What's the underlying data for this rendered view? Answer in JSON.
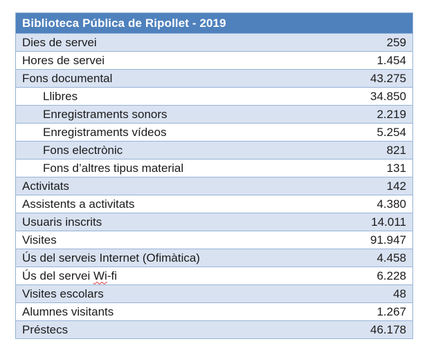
{
  "table": {
    "title": "Biblioteca Pública de Ripollet - 2019",
    "rows": [
      {
        "label": "Dies de servei",
        "value": "259",
        "indent": false
      },
      {
        "label": "Hores de servei",
        "value": "1.454",
        "indent": false
      },
      {
        "label": "Fons documental",
        "value": "43.275",
        "indent": false
      },
      {
        "label": "Llibres",
        "value": "34.850",
        "indent": true
      },
      {
        "label": "Enregistraments sonors",
        "value": "2.219",
        "indent": true
      },
      {
        "label": "Enregistraments vídeos",
        "value": "5.254",
        "indent": true
      },
      {
        "label": "Fons electrònic",
        "value": "821",
        "indent": true
      },
      {
        "label": "Fons d’altres tipus material",
        "value": "131",
        "indent": true
      },
      {
        "label": "Activitats",
        "value": "142",
        "indent": false
      },
      {
        "label": "Assistents a activitats",
        "value": "4.380",
        "indent": false
      },
      {
        "label": "Usuaris inscrits",
        "value": "14.011",
        "indent": false
      },
      {
        "label": "Visites",
        "value": "91.947",
        "indent": false
      },
      {
        "label": "Ús del serveis Internet (Ofimàtica)",
        "value": "4.458",
        "indent": false
      },
      {
        "label": "Ús del servei Wi-fi",
        "value": "6.228",
        "indent": false,
        "spellcheck": {
          "before": "Ús del servei ",
          "error": "Wi",
          "after": "-fi"
        }
      },
      {
        "label": "Visites escolars",
        "value": "48",
        "indent": false
      },
      {
        "label": "Alumnes visitants",
        "value": "1.267",
        "indent": false
      },
      {
        "label": "Préstecs",
        "value": "46.178",
        "indent": false
      }
    ]
  },
  "colors": {
    "header_bg": "#4f81bd",
    "header_text": "#ffffff",
    "band_bg": "#d9e2f1",
    "border": "#95b3d7",
    "text": "#1b1b1b",
    "spellcheck_underline": "#e03131"
  }
}
